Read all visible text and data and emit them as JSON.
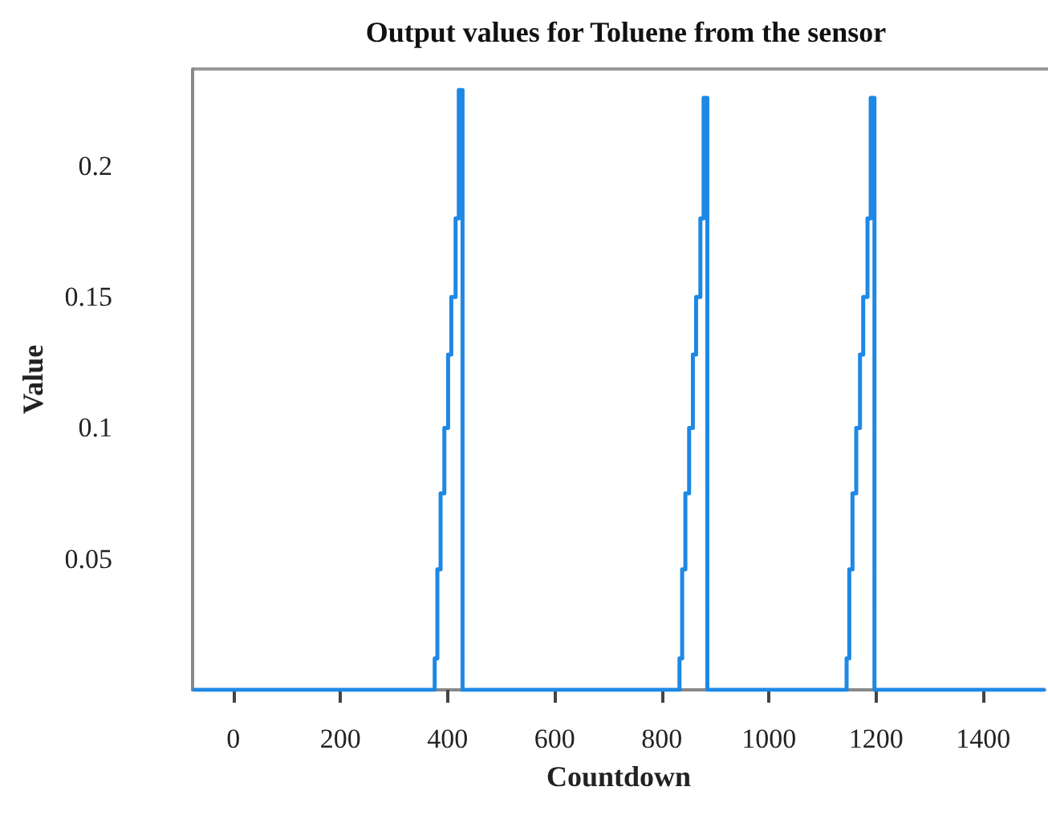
{
  "chart_data": {
    "type": "step",
    "title": "Output values for Toluene from the sensor",
    "xlabel": "Countdown",
    "ylabel": "Value",
    "x": [
      -76,
      376,
      381,
      387,
      394,
      401,
      407,
      415,
      421,
      428,
      833,
      838,
      844,
      851,
      858,
      864,
      872,
      878,
      885,
      1145,
      1150,
      1156,
      1163,
      1170,
      1176,
      1184,
      1190,
      1197,
      1515
    ],
    "series": [
      {
        "color": "#1e88e5",
        "values": [
          0,
          0.012,
          0.046,
          0.075,
          0.1,
          0.128,
          0.15,
          0.18,
          0.229,
          0,
          0.012,
          0.046,
          0.075,
          0.1,
          0.128,
          0.15,
          0.18,
          0.226,
          0,
          0.012,
          0.046,
          0.075,
          0.1,
          0.128,
          0.15,
          0.18,
          0.226,
          0,
          0
        ]
      }
    ],
    "xlim": [
      -76,
      1515
    ],
    "ylim": [
      0,
      0.237
    ],
    "xticks": [
      0,
      200,
      400,
      600,
      800,
      1000,
      1200,
      1400
    ],
    "yticks": [
      0.05,
      0.1,
      0.15,
      0.2
    ],
    "grid": false,
    "marker": "none",
    "line_style": "solid"
  }
}
